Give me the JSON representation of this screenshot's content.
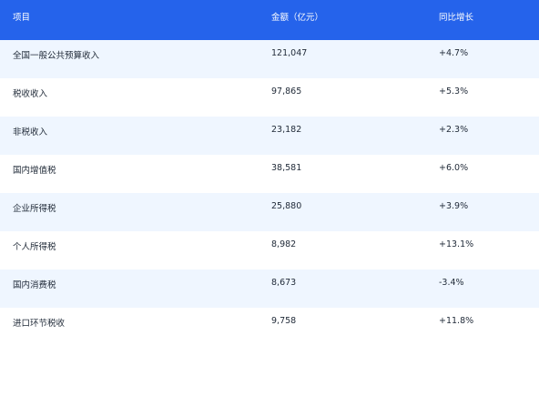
{
  "table": {
    "header": [
      "项目",
      "金额（亿元）",
      "同比增长"
    ],
    "rows": [
      [
        "全国一般公共预算收入",
        "121,047",
        "+4.7%"
      ],
      [
        "税收收入",
        "97,865",
        "+5.3%"
      ],
      [
        "非税收入",
        "23,182",
        "+2.3%"
      ],
      [
        "国内增值税",
        "38,581",
        "+6.0%"
      ],
      [
        "企业所得税",
        "25,880",
        "+3.9%"
      ],
      [
        "个人所得税",
        "8,982",
        "+13.1%"
      ],
      [
        "国内消费税",
        "8,673",
        "-3.4%"
      ],
      [
        "进口环节税收",
        "9,758",
        "+11.8%"
      ]
    ]
  }
}
